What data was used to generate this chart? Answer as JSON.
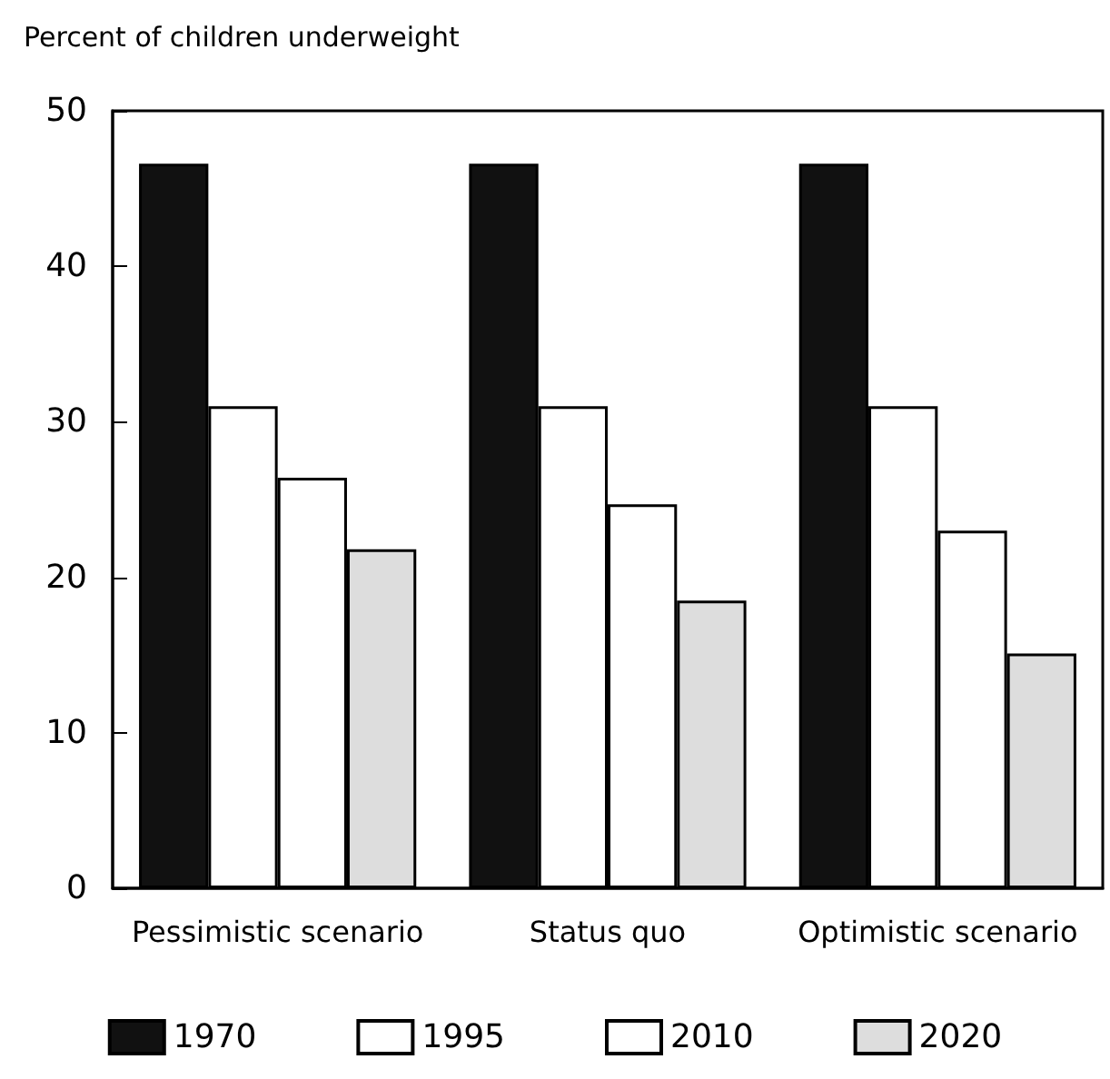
{
  "chart_data": {
    "type": "bar",
    "ylabel": "Percent of children underweight",
    "categories": [
      "Pessimistic scenario",
      "Status quo",
      "Optimistic scenario"
    ],
    "series": [
      {
        "name": "1970",
        "color": "#111111",
        "values": [
          46.6,
          46.6,
          46.6
        ]
      },
      {
        "name": "1995",
        "color": "#ffffff",
        "values": [
          31.0,
          31.0,
          31.0
        ]
      },
      {
        "name": "2010",
        "color": "#ffffff",
        "values": [
          26.4,
          24.7,
          23.0
        ]
      },
      {
        "name": "2020",
        "color": "#dddddd",
        "values": [
          21.8,
          18.5,
          15.1
        ]
      }
    ],
    "ylim": [
      0,
      50
    ],
    "yticks": [
      0,
      10,
      20,
      30,
      40,
      50
    ],
    "grid": false,
    "legend": "bottom"
  }
}
